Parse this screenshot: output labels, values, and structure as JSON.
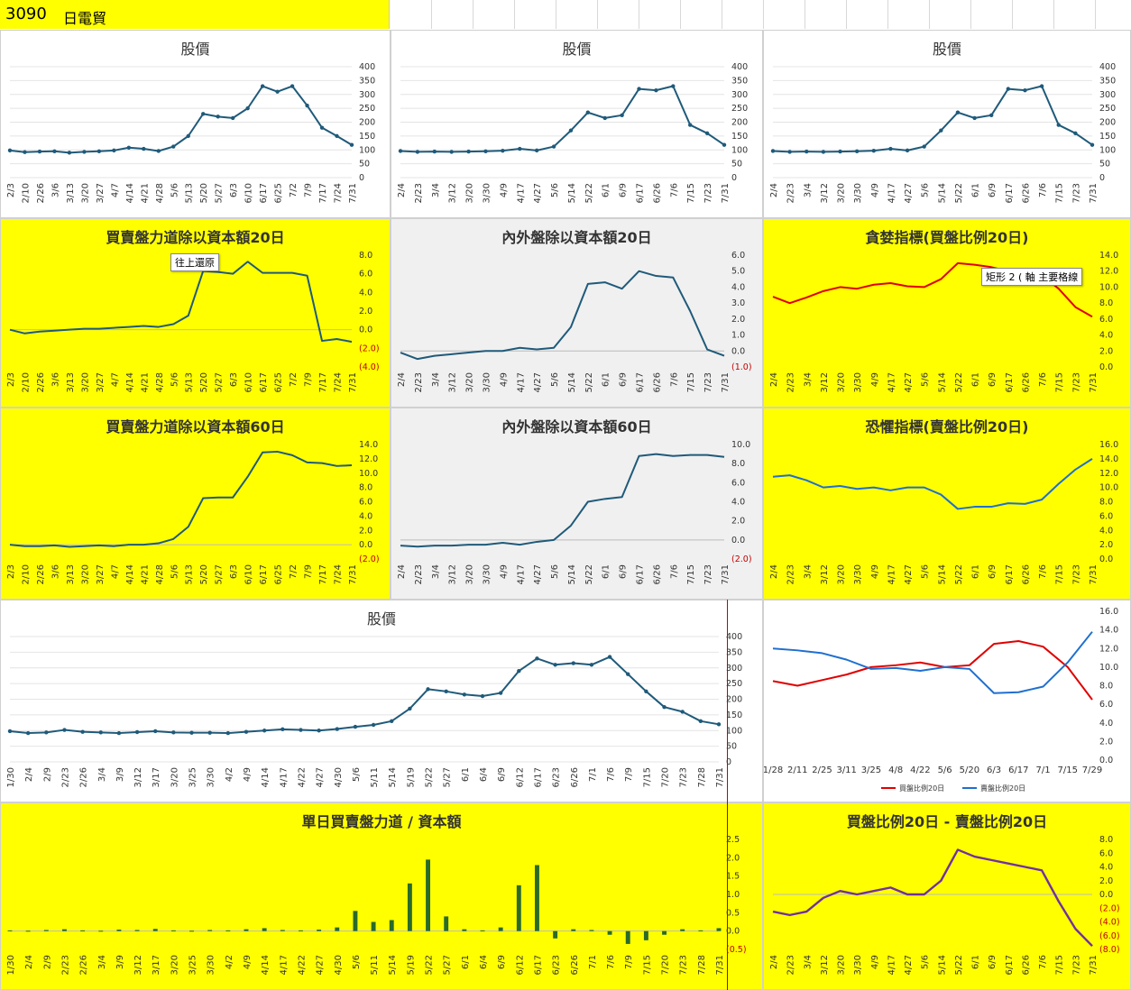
{
  "header": {
    "code": "3090",
    "name": "日電貿"
  },
  "tooltips": {
    "restore": "往上還原",
    "shape": "矩形 2",
    "axis": "軸 主要格線",
    "shape_mid": "("
  },
  "colors": {
    "price": "#1f5a7a",
    "red": "#e00000",
    "blue": "#1f6fd0",
    "purple": "#7030a0",
    "bar": "#2a6a2a",
    "negLabel": "#c00000",
    "yellow": "#ffff00"
  },
  "chart_data": [
    {
      "type": "line",
      "title": "股價",
      "x": [
        "2/3",
        "2/10",
        "2/26",
        "3/6",
        "3/13",
        "3/20",
        "3/27",
        "4/7",
        "4/14",
        "4/21",
        "4/28",
        "5/6",
        "5/13",
        "5/20",
        "5/27",
        "6/3",
        "6/10",
        "6/17",
        "6/25",
        "7/2",
        "7/9",
        "7/17",
        "7/24",
        "7/31"
      ],
      "series": [
        {
          "values": [
            98,
            92,
            94,
            95,
            90,
            93,
            95,
            98,
            108,
            104,
            96,
            112,
            150,
            230,
            220,
            215,
            250,
            330,
            310,
            330,
            260,
            180,
            150,
            118
          ]
        }
      ],
      "ylim": [
        0,
        400
      ],
      "yticks": [
        0,
        50,
        100,
        150,
        200,
        250,
        300,
        350,
        400
      ]
    },
    {
      "type": "line",
      "title": "股價",
      "x": [
        "2/4",
        "2/23",
        "3/4",
        "3/12",
        "3/20",
        "3/30",
        "4/9",
        "4/17",
        "4/27",
        "5/6",
        "5/14",
        "5/22",
        "6/1",
        "6/9",
        "6/17",
        "6/26",
        "7/6",
        "7/15",
        "7/23",
        "7/31"
      ],
      "series": [
        {
          "values": [
            96,
            93,
            94,
            93,
            94,
            95,
            97,
            104,
            98,
            112,
            170,
            235,
            215,
            225,
            320,
            315,
            330,
            190,
            160,
            118
          ]
        }
      ],
      "ylim": [
        0,
        400
      ],
      "yticks": [
        0,
        50,
        100,
        150,
        200,
        250,
        300,
        350,
        400
      ]
    },
    {
      "type": "line",
      "title": "股價",
      "x": [
        "2/4",
        "2/23",
        "3/4",
        "3/12",
        "3/20",
        "3/30",
        "4/9",
        "4/17",
        "4/27",
        "5/6",
        "5/14",
        "5/22",
        "6/1",
        "6/9",
        "6/17",
        "6/26",
        "7/6",
        "7/15",
        "7/23",
        "7/31"
      ],
      "series": [
        {
          "values": [
            96,
            93,
            94,
            93,
            94,
            95,
            97,
            104,
            98,
            112,
            170,
            235,
            215,
            225,
            320,
            315,
            330,
            190,
            160,
            118
          ]
        }
      ],
      "ylim": [
        0,
        400
      ],
      "yticks": [
        0,
        50,
        100,
        150,
        200,
        250,
        300,
        350,
        400
      ]
    },
    {
      "type": "line",
      "title": "買賣盤力道除以資本額20日",
      "x": [
        "2/3",
        "2/10",
        "2/26",
        "3/6",
        "3/13",
        "3/20",
        "3/27",
        "4/7",
        "4/14",
        "4/21",
        "4/28",
        "5/6",
        "5/13",
        "5/20",
        "5/27",
        "6/3",
        "6/10",
        "6/17",
        "6/25",
        "7/2",
        "7/9",
        "7/17",
        "7/24",
        "7/31"
      ],
      "series": [
        {
          "values": [
            0,
            -0.4,
            -0.2,
            -0.1,
            0,
            0.1,
            0.1,
            0.2,
            0.3,
            0.4,
            0.3,
            0.6,
            1.5,
            6.3,
            6.2,
            6.0,
            7.3,
            6.1,
            6.1,
            6.1,
            5.8,
            -1.2,
            -1.0,
            -1.3
          ]
        }
      ],
      "ylim": [
        -4,
        8
      ],
      "yticks": [
        "(4.0)",
        "(2.0)",
        "0.0",
        "2.0",
        "4.0",
        "6.0",
        "8.0"
      ]
    },
    {
      "type": "line",
      "title": "內外盤除以資本額20日",
      "x": [
        "2/4",
        "2/23",
        "3/4",
        "3/12",
        "3/20",
        "3/30",
        "4/9",
        "4/17",
        "4/27",
        "5/6",
        "5/14",
        "5/22",
        "6/1",
        "6/9",
        "6/17",
        "6/26",
        "7/6",
        "7/15",
        "7/23",
        "7/31"
      ],
      "series": [
        {
          "values": [
            -0.1,
            -0.5,
            -0.3,
            -0.2,
            -0.1,
            0,
            0,
            0.2,
            0.1,
            0.2,
            1.5,
            4.2,
            4.3,
            3.9,
            5.0,
            4.7,
            4.6,
            2.5,
            0.1,
            -0.3
          ]
        }
      ],
      "ylim": [
        -1,
        6
      ],
      "yticks": [
        "(1.0)",
        "0.0",
        "1.0",
        "2.0",
        "3.0",
        "4.0",
        "5.0",
        "6.0"
      ]
    },
    {
      "type": "line",
      "title": "貪婪指標(買盤比例20日)",
      "x": [
        "2/4",
        "2/23",
        "3/4",
        "3/12",
        "3/20",
        "3/30",
        "4/9",
        "4/17",
        "4/27",
        "5/6",
        "5/14",
        "5/22",
        "6/1",
        "6/9",
        "6/17",
        "6/26",
        "7/6",
        "7/15",
        "7/23",
        "7/31"
      ],
      "series": [
        {
          "name": "買盤比例20日",
          "values": [
            8.8,
            8.0,
            8.7,
            9.5,
            10.0,
            9.8,
            10.3,
            10.5,
            10.1,
            10.0,
            11.0,
            13.0,
            12.8,
            12.5,
            12.0,
            12.2,
            11.5,
            9.8,
            7.5,
            6.3
          ]
        }
      ],
      "ylim": [
        0,
        14
      ],
      "yticks": [
        "0.0",
        "2.0",
        "4.0",
        "6.0",
        "8.0",
        "10.0",
        "12.0",
        "14.0"
      ]
    },
    {
      "type": "line",
      "title": "買賣盤力道除以資本額60日",
      "x": [
        "2/3",
        "2/10",
        "2/26",
        "3/6",
        "3/13",
        "3/20",
        "3/27",
        "4/7",
        "4/14",
        "4/21",
        "4/28",
        "5/6",
        "5/13",
        "5/20",
        "5/27",
        "6/3",
        "6/10",
        "6/17",
        "6/25",
        "7/2",
        "7/9",
        "7/17",
        "7/24",
        "7/31"
      ],
      "series": [
        {
          "values": [
            0,
            -0.2,
            -0.2,
            -0.1,
            -0.3,
            -0.2,
            -0.1,
            -0.2,
            0,
            0,
            0.2,
            0.8,
            2.5,
            6.5,
            6.6,
            6.6,
            9.5,
            12.9,
            13.0,
            12.5,
            11.5,
            11.4,
            11.0,
            11.1
          ]
        }
      ],
      "ylim": [
        -2,
        14
      ],
      "yticks": [
        "(2.0)",
        "0.0",
        "2.0",
        "4.0",
        "6.0",
        "8.0",
        "10.0",
        "12.0",
        "14.0"
      ]
    },
    {
      "type": "line",
      "title": "內外盤除以資本額60日",
      "x": [
        "2/4",
        "2/23",
        "3/4",
        "3/12",
        "3/20",
        "3/30",
        "4/9",
        "4/17",
        "4/27",
        "5/6",
        "5/14",
        "5/22",
        "6/1",
        "6/9",
        "6/17",
        "6/26",
        "7/6",
        "7/15",
        "7/23",
        "7/31"
      ],
      "series": [
        {
          "values": [
            -0.6,
            -0.7,
            -0.6,
            -0.6,
            -0.5,
            -0.5,
            -0.3,
            -0.5,
            -0.2,
            0,
            1.5,
            4.0,
            4.3,
            4.5,
            8.8,
            9.0,
            8.8,
            8.9,
            8.9,
            8.7
          ]
        }
      ],
      "ylim": [
        -2,
        10
      ],
      "yticks": [
        "(2.0)",
        "0.0",
        "2.0",
        "4.0",
        "6.0",
        "8.0",
        "10.0"
      ]
    },
    {
      "type": "line",
      "title": "恐懼指標(賣盤比例20日)",
      "x": [
        "2/4",
        "2/23",
        "3/4",
        "3/12",
        "3/20",
        "3/30",
        "4/9",
        "4/17",
        "4/27",
        "5/6",
        "5/14",
        "5/22",
        "6/1",
        "6/9",
        "6/17",
        "6/26",
        "7/6",
        "7/15",
        "7/23",
        "7/31"
      ],
      "series": [
        {
          "name": "賣盤比例20日",
          "values": [
            11.5,
            11.7,
            11.0,
            10.0,
            10.2,
            9.8,
            10.0,
            9.6,
            10.0,
            10.0,
            9.0,
            7.0,
            7.3,
            7.3,
            7.8,
            7.7,
            8.3,
            10.5,
            12.5,
            14.0
          ]
        }
      ],
      "ylim": [
        0,
        16
      ],
      "yticks": [
        "0.0",
        "2.0",
        "4.0",
        "6.0",
        "8.0",
        "10.0",
        "12.0",
        "14.0",
        "16.0"
      ]
    },
    {
      "type": "line",
      "title": "股價",
      "x": [
        "1/30",
        "2/4",
        "2/9",
        "2/23",
        "2/26",
        "3/4",
        "3/9",
        "3/12",
        "3/17",
        "3/20",
        "3/25",
        "3/30",
        "4/2",
        "4/9",
        "4/14",
        "4/17",
        "4/22",
        "4/27",
        "4/30",
        "5/6",
        "5/11",
        "5/14",
        "5/19",
        "5/22",
        "5/27",
        "6/1",
        "6/4",
        "6/9",
        "6/12",
        "6/17",
        "6/23",
        "6/26",
        "7/1",
        "7/6",
        "7/9",
        "7/15",
        "7/20",
        "7/23",
        "7/28",
        "7/31"
      ],
      "series": [
        {
          "values": [
            98,
            92,
            94,
            102,
            96,
            94,
            92,
            95,
            98,
            94,
            93,
            93,
            92,
            96,
            100,
            104,
            102,
            100,
            105,
            112,
            118,
            130,
            170,
            232,
            225,
            215,
            210,
            220,
            290,
            330,
            310,
            315,
            310,
            335,
            280,
            225,
            175,
            160,
            130,
            120
          ]
        }
      ],
      "ylim": [
        0,
        400
      ],
      "yticks": [
        0,
        50,
        100,
        150,
        200,
        250,
        300,
        350,
        400
      ]
    },
    {
      "type": "line",
      "title": "",
      "x": [
        "1/28",
        "2/11",
        "2/25",
        "3/11",
        "3/25",
        "4/8",
        "4/22",
        "5/6",
        "5/20",
        "6/3",
        "6/17",
        "7/1",
        "7/15",
        "7/29"
      ],
      "series": [
        {
          "name": "買盤比例20日",
          "values": [
            8.5,
            8.0,
            8.6,
            9.2,
            10.0,
            10.2,
            10.5,
            10.0,
            10.2,
            12.5,
            12.8,
            12.2,
            10.0,
            6.5
          ]
        },
        {
          "name": "賣盤比例20日",
          "values": [
            12.0,
            11.8,
            11.5,
            10.8,
            9.8,
            9.9,
            9.6,
            10.0,
            9.8,
            7.2,
            7.3,
            7.9,
            10.5,
            13.8
          ]
        }
      ],
      "ylim": [
        0,
        16
      ],
      "yticks": [
        "0.0",
        "2.0",
        "4.0",
        "6.0",
        "8.0",
        "10.0",
        "12.0",
        "14.0",
        "16.0"
      ],
      "legend": "bottom"
    },
    {
      "type": "bar",
      "title": "單日買賣盤力道 / 資本額",
      "x": [
        "1/30",
        "2/4",
        "2/9",
        "2/23",
        "2/26",
        "3/4",
        "3/9",
        "3/12",
        "3/17",
        "3/20",
        "3/25",
        "3/30",
        "4/2",
        "4/9",
        "4/14",
        "4/17",
        "4/22",
        "4/27",
        "4/30",
        "5/6",
        "5/11",
        "5/14",
        "5/19",
        "5/22",
        "5/27",
        "6/1",
        "6/4",
        "6/9",
        "6/12",
        "6/17",
        "6/23",
        "6/26",
        "7/1",
        "7/6",
        "7/9",
        "7/15",
        "7/20",
        "7/23",
        "7/28",
        "7/31"
      ],
      "values": [
        0.02,
        0.01,
        0.03,
        0.05,
        0.02,
        0.01,
        0.04,
        0.03,
        0.06,
        0.02,
        0.01,
        0.03,
        0.02,
        0.05,
        0.08,
        0.03,
        0.02,
        0.04,
        0.1,
        0.55,
        0.25,
        0.3,
        1.3,
        1.95,
        0.4,
        0.05,
        0.02,
        0.1,
        1.25,
        1.8,
        -0.2,
        0.05,
        0.03,
        -0.1,
        -0.35,
        -0.25,
        -0.1,
        0.05,
        0.02,
        0.08
      ],
      "ylim": [
        -0.5,
        2.5
      ],
      "yticks": [
        "(0.5)",
        "0.0",
        "0.5",
        "1.0",
        "1.5",
        "2.0",
        "2.5"
      ]
    },
    {
      "type": "line",
      "title": "買盤比例20日 - 賣盤比例20日",
      "x": [
        "2/4",
        "2/23",
        "3/4",
        "3/12",
        "3/20",
        "3/30",
        "4/9",
        "4/17",
        "4/27",
        "5/6",
        "5/14",
        "5/22",
        "6/1",
        "6/9",
        "6/17",
        "6/26",
        "7/6",
        "7/15",
        "7/23",
        "7/31"
      ],
      "series": [
        {
          "values": [
            -2.5,
            -3.0,
            -2.5,
            -0.5,
            0.5,
            0,
            0.5,
            1.0,
            0.0,
            0.0,
            2.0,
            6.5,
            5.5,
            5.0,
            4.5,
            4.0,
            3.5,
            -1.0,
            -5.0,
            -7.5
          ]
        }
      ],
      "ylim": [
        -8,
        8
      ],
      "yticks": [
        "(8.0)",
        "(6.0)",
        "(4.0)",
        "(2.0)",
        "0.0",
        "2.0",
        "4.0",
        "6.0",
        "8.0"
      ]
    }
  ]
}
